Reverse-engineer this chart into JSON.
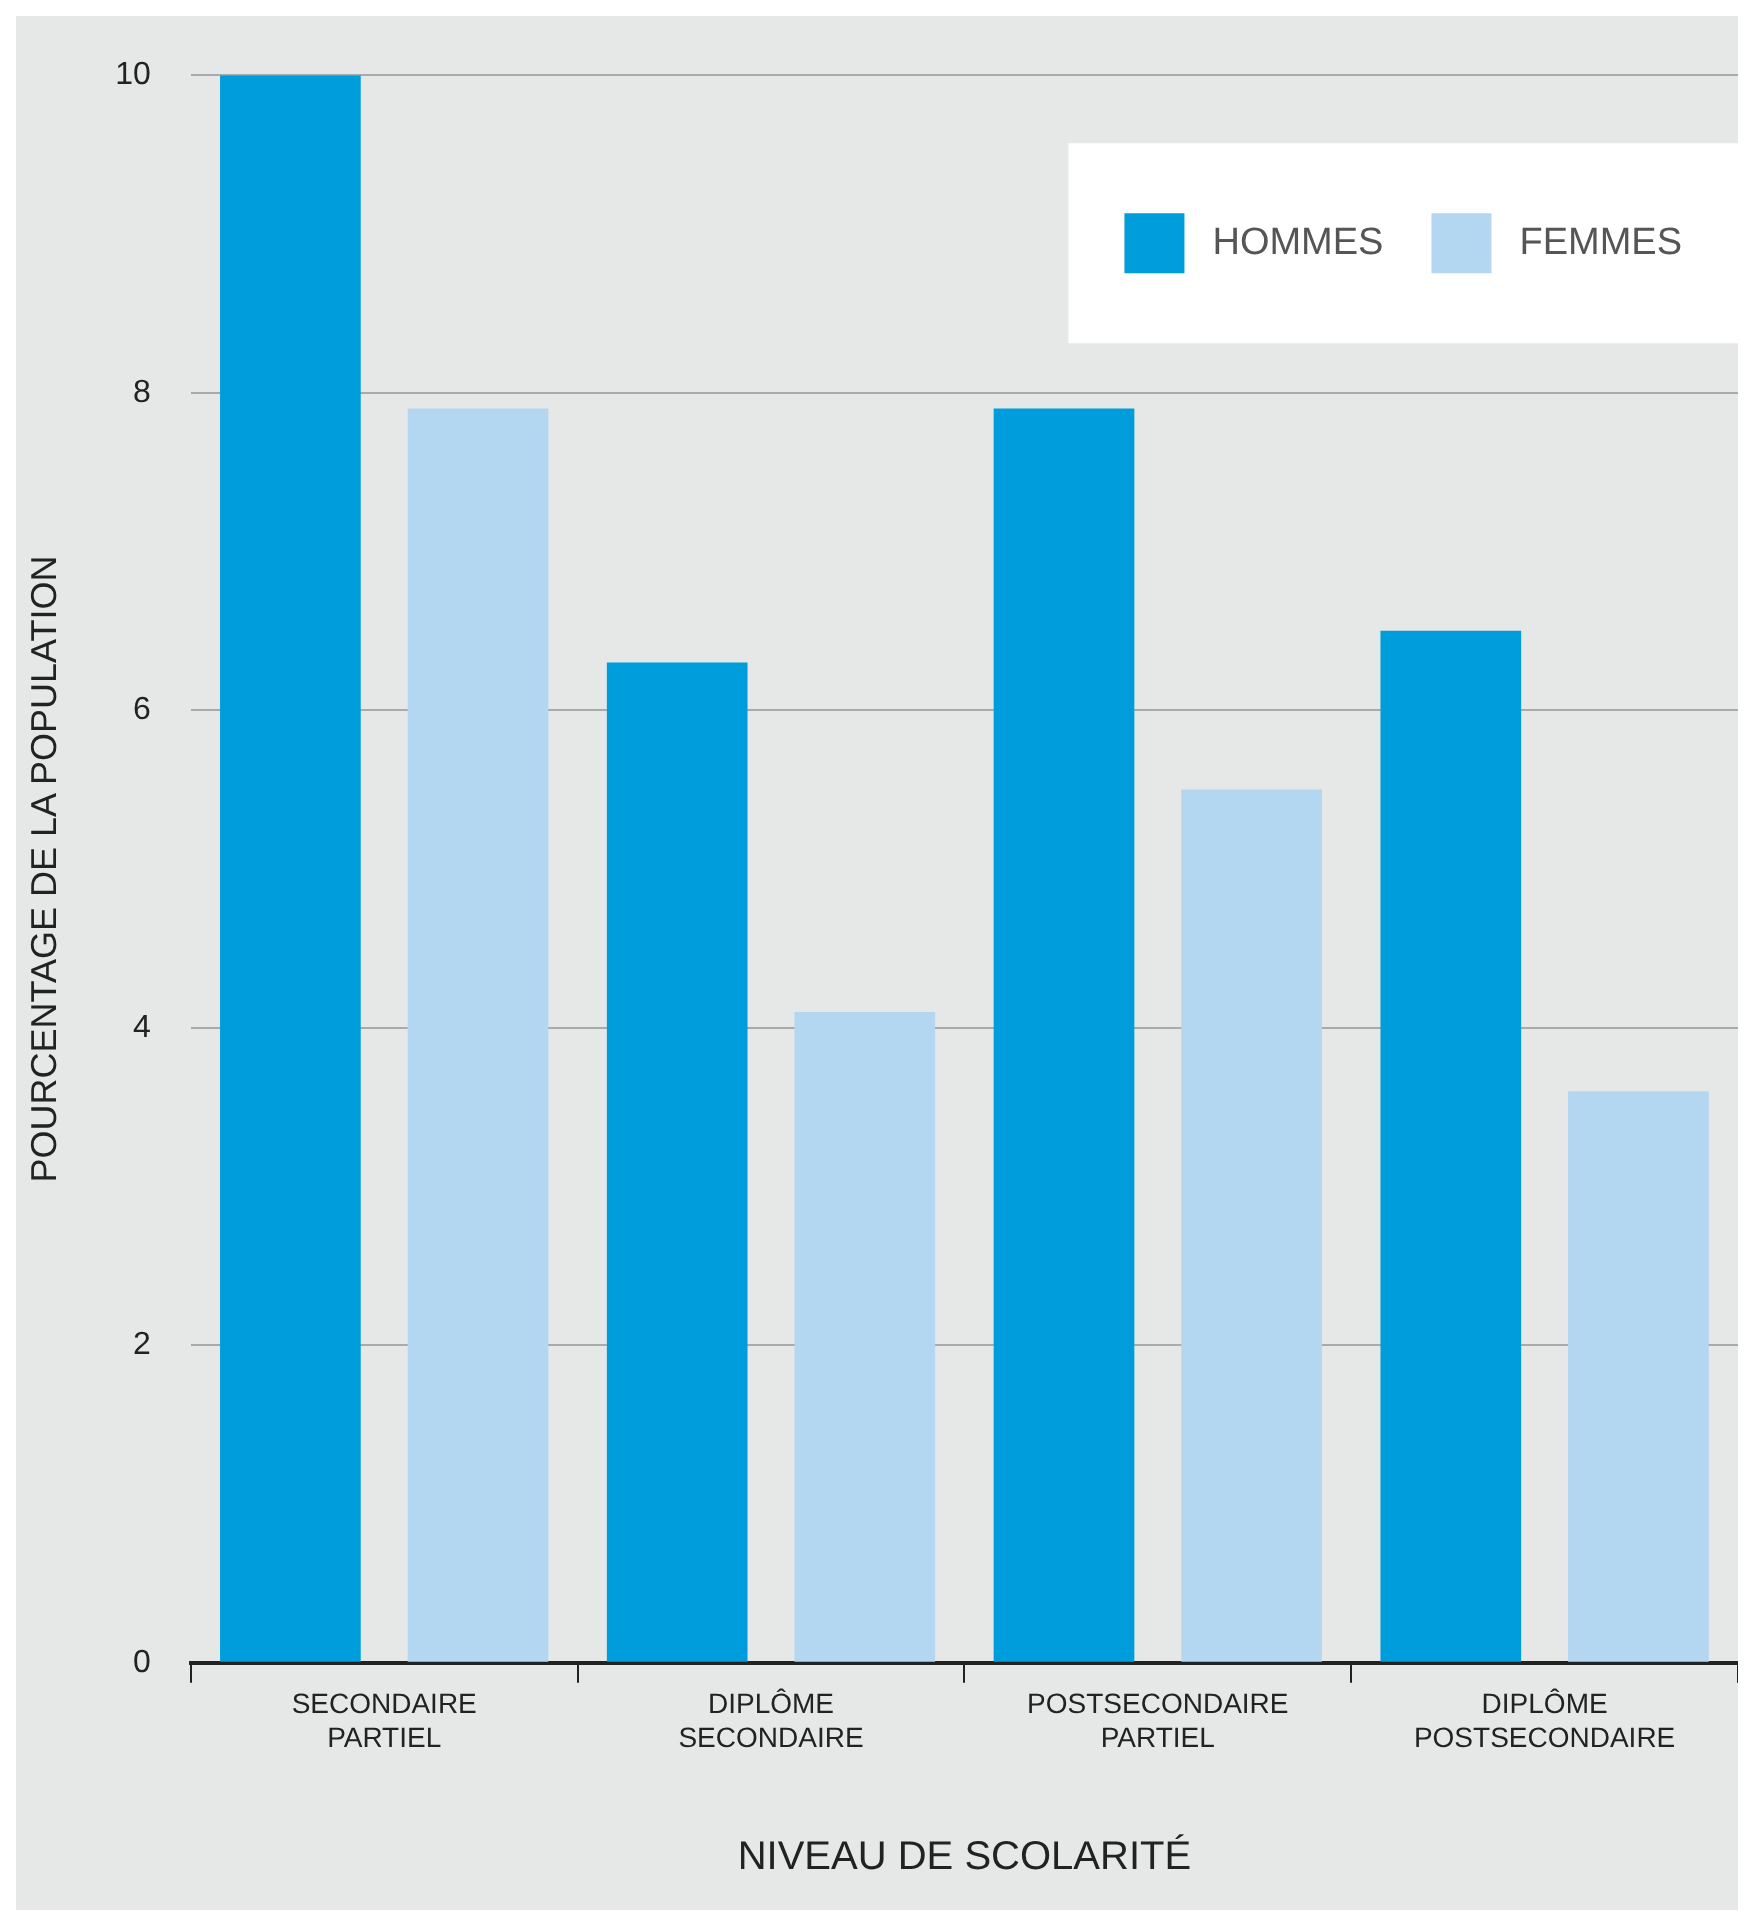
{
  "chart_data": {
    "type": "bar",
    "xlabel": "NIVEAU DE SCOLARITÉ",
    "ylabel": "POURCENTAGE DE LA POPULATION",
    "categories": [
      "SECONDAIRE PARTIEL",
      "DIPLÔME SECONDAIRE",
      "POSTSECONDAIRE PARTIEL",
      "DIPLÔME POSTSECONDAIRE"
    ],
    "series": [
      {
        "name": "HOMMES",
        "color": "#009ddc",
        "values": [
          10,
          6.3,
          7.9,
          6.5
        ]
      },
      {
        "name": "FEMMES",
        "color": "#b3d7f1",
        "values": [
          7.9,
          4.1,
          5.5,
          3.6
        ]
      }
    ],
    "ylim": [
      0,
      10
    ],
    "yticks": [
      0,
      2,
      4,
      6,
      8,
      10
    ],
    "grid": "y",
    "legend": "top right"
  }
}
